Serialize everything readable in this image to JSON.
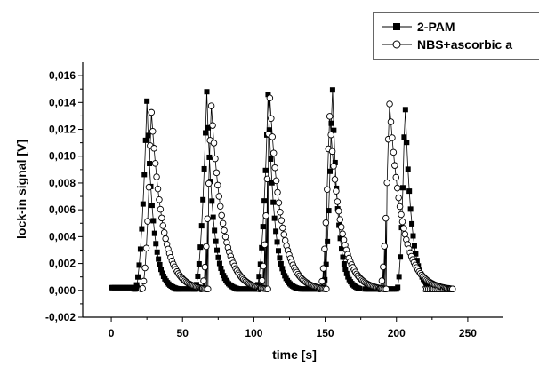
{
  "chart_data": {
    "type": "scatter",
    "xlabel": "time [s]",
    "ylabel": "lock-in signal [V]",
    "xlim": [
      -20,
      275
    ],
    "ylim": [
      -0.002,
      0.017
    ],
    "xticks": [
      "0",
      "50",
      "100",
      "150",
      "200",
      "250"
    ],
    "yticks": [
      "-0,002",
      "0,000",
      "0,002",
      "0,004",
      "0,006",
      "0,008",
      "0,010",
      "0,012",
      "0,014",
      "0,016"
    ],
    "grid": false,
    "legend_position": "top-right",
    "series": [
      {
        "name": "2-PAM",
        "marker": "filled-square",
        "color": "#000000",
        "peaks": [
          {
            "t": 25,
            "peak": 0.0141,
            "rise": 9,
            "decay": 4.5
          },
          {
            "t": 67,
            "peak": 0.0148,
            "rise": 9,
            "decay": 4.5
          },
          {
            "t": 110,
            "peak": 0.0146,
            "rise": 9,
            "decay": 4.5
          },
          {
            "t": 155,
            "peak": 0.0157,
            "rise": 7,
            "decay": 4.0
          },
          {
            "t": 206,
            "peak": 0.0144,
            "rise": 6,
            "decay": 4.5
          }
        ],
        "baseline_segments": [
          {
            "from": 0,
            "to": 19,
            "value": 0.0002
          },
          {
            "from": 45,
            "to": 60,
            "value": 0.0001
          },
          {
            "from": 88,
            "to": 103,
            "value": 0.0001
          },
          {
            "from": 133,
            "to": 148,
            "value": 0.0001
          },
          {
            "from": 178,
            "to": 199,
            "value": 0.0001
          },
          {
            "from": 225,
            "to": 235,
            "value": 0.0001
          }
        ]
      },
      {
        "name": "NBS+ascorbic a",
        "marker": "open-circle",
        "color": "#000000",
        "peaks": [
          {
            "t": 28,
            "peak": 0.0136,
            "rise": 7,
            "decay": 8
          },
          {
            "t": 70,
            "peak": 0.0141,
            "rise": 7,
            "decay": 8
          },
          {
            "t": 111,
            "peak": 0.0147,
            "rise": 7,
            "decay": 8
          },
          {
            "t": 153,
            "peak": 0.0133,
            "rise": 7,
            "decay": 8
          },
          {
            "t": 195,
            "peak": 0.0142,
            "rise": 7,
            "decay": 9
          }
        ],
        "baseline_segments": [
          {
            "from": 220,
            "to": 240,
            "value": 0.0001
          }
        ]
      }
    ]
  }
}
